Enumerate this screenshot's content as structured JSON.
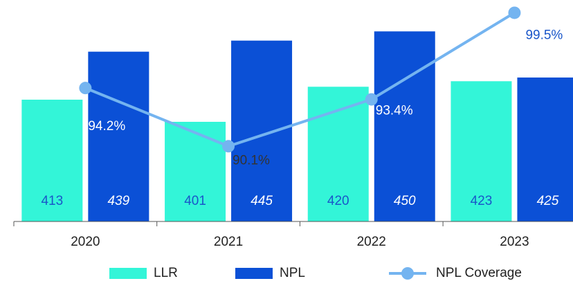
{
  "chart_data": {
    "type": "bar_line",
    "categories": [
      "2020",
      "2021",
      "2022",
      "2023"
    ],
    "series": [
      {
        "name": "LLR",
        "type": "bar",
        "color": "#33f5d8",
        "values": [
          413,
          401,
          420,
          423
        ]
      },
      {
        "name": "NPL",
        "type": "bar",
        "color": "#0b50d6",
        "values": [
          439,
          445,
          450,
          425
        ]
      },
      {
        "name": "NPL Coverage",
        "type": "line",
        "axis": "y2",
        "color": "#74b4f0",
        "values": [
          94.2,
          90.1,
          93.4,
          99.5
        ],
        "value_labels": [
          "94.2%",
          "90.1%",
          "93.4%",
          "99.5%"
        ]
      }
    ],
    "ylim": [
      347,
      467
    ],
    "y2lim": [
      84.8,
      100.4
    ],
    "legend": "bottom"
  }
}
